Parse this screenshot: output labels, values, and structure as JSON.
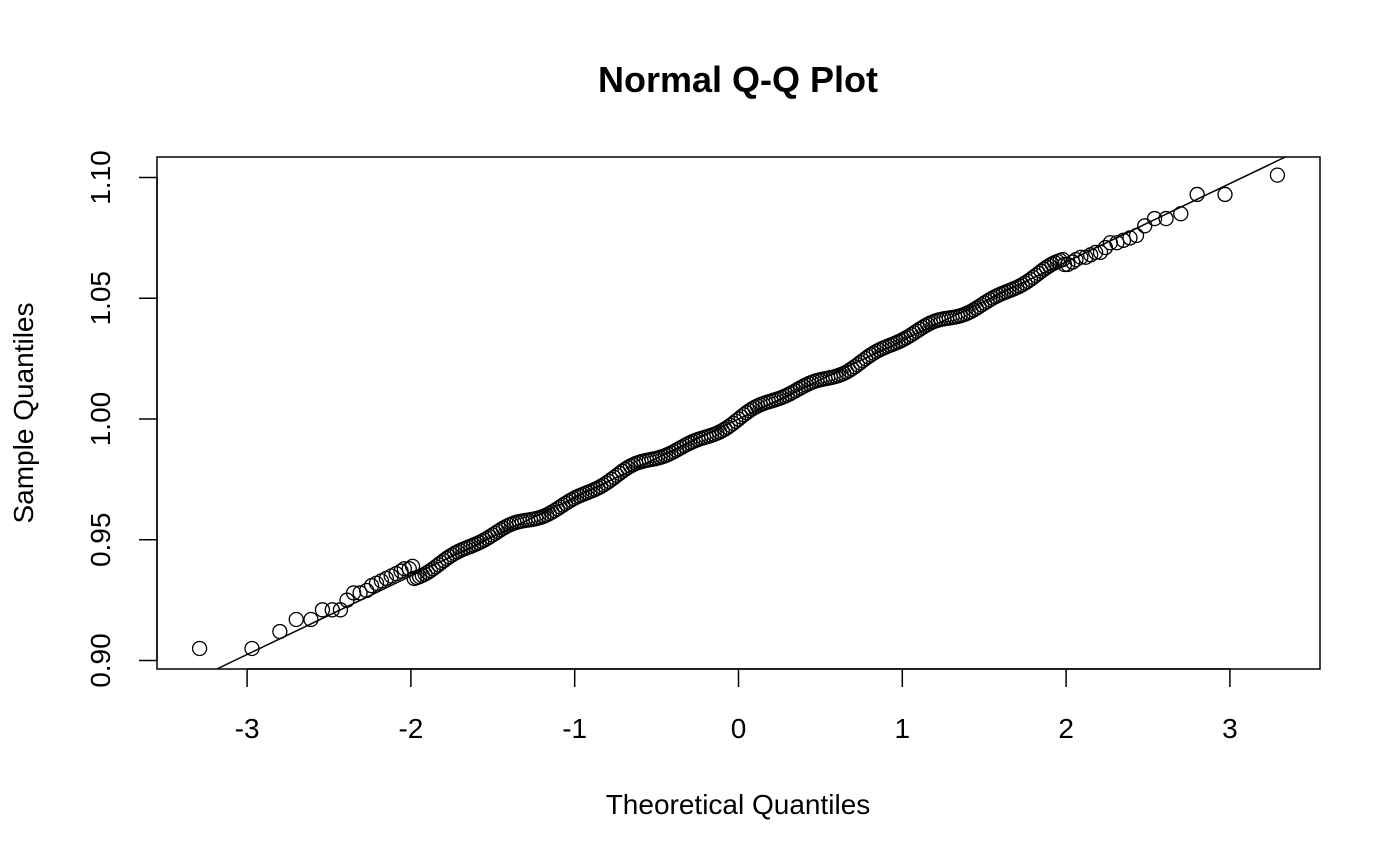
{
  "chart_data": {
    "type": "scatter",
    "title": "Normal Q-Q Plot",
    "xlabel": "Theoretical Quantiles",
    "ylabel": "Sample Quantiles",
    "xlim": [
      -3.55,
      3.55
    ],
    "ylim": [
      0.8965,
      1.1085
    ],
    "x_ticks": [
      -3,
      -2,
      -1,
      0,
      1,
      2,
      3
    ],
    "x_tick_labels": [
      "-3",
      "-2",
      "-1",
      "0",
      "1",
      "2",
      "3"
    ],
    "y_ticks": [
      0.9,
      0.95,
      1.0,
      1.05,
      1.1
    ],
    "y_tick_labels": [
      "0.90",
      "0.95",
      "1.00",
      "1.05",
      "1.10"
    ],
    "grid": false,
    "marker": "open-circle",
    "reference_line": {
      "intercept": 1.0,
      "slope": 0.0325
    },
    "points": {
      "n": 1000,
      "low_tail": [
        [
          -3.29,
          0.905
        ],
        [
          -2.97,
          0.905
        ],
        [
          -2.8,
          0.912
        ],
        [
          -2.7,
          0.917
        ],
        [
          -2.61,
          0.917
        ],
        [
          -2.54,
          0.921
        ],
        [
          -2.48,
          0.921
        ],
        [
          -2.43,
          0.921
        ],
        [
          -2.39,
          0.925
        ],
        [
          -2.35,
          0.928
        ],
        [
          -2.31,
          0.928
        ],
        [
          -2.27,
          0.929
        ],
        [
          -2.24,
          0.931
        ],
        [
          -2.21,
          0.932
        ],
        [
          -2.18,
          0.933
        ],
        [
          -2.15,
          0.934
        ],
        [
          -2.12,
          0.935
        ],
        [
          -2.09,
          0.936
        ],
        [
          -2.06,
          0.937
        ],
        [
          -2.04,
          0.938
        ],
        [
          -2.01,
          0.938
        ],
        [
          -1.99,
          0.939
        ]
      ],
      "high_tail": [
        [
          1.99,
          1.064
        ],
        [
          2.01,
          1.064
        ],
        [
          2.04,
          1.065
        ],
        [
          2.06,
          1.066
        ],
        [
          2.09,
          1.067
        ],
        [
          2.12,
          1.067
        ],
        [
          2.15,
          1.068
        ],
        [
          2.18,
          1.069
        ],
        [
          2.21,
          1.069
        ],
        [
          2.24,
          1.071
        ],
        [
          2.27,
          1.073
        ],
        [
          2.31,
          1.073
        ],
        [
          2.35,
          1.074
        ],
        [
          2.39,
          1.075
        ],
        [
          2.43,
          1.076
        ],
        [
          2.48,
          1.08
        ],
        [
          2.54,
          1.083
        ],
        [
          2.61,
          1.083
        ],
        [
          2.7,
          1.085
        ],
        [
          2.8,
          1.093
        ],
        [
          2.97,
          1.093
        ],
        [
          3.29,
          1.101
        ]
      ]
    }
  }
}
